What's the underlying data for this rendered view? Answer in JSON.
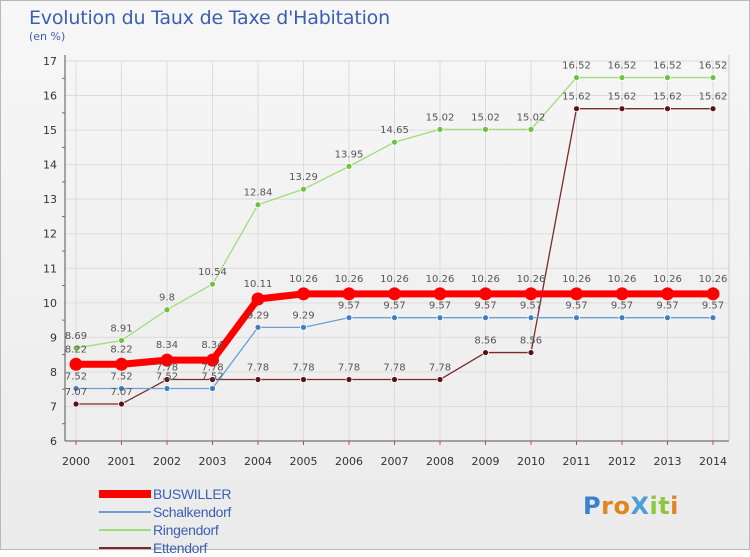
{
  "title": "Evolution du Taux de Taxe d'Habitation",
  "unit_label": "(en %)",
  "brand": {
    "letters": [
      "P",
      "r",
      "o",
      "X",
      "i",
      "t",
      "i"
    ],
    "colors": [
      "#3b7fd1",
      "#e2851f",
      "#e2851f",
      "#4a9ed9",
      "#8dc63f",
      "#8dc63f",
      "#e2851f"
    ]
  },
  "chart_data": {
    "type": "line",
    "title": "Evolution du Taux de Taxe d'Habitation",
    "ylabel": "(en %)",
    "xlabel": "",
    "x": [
      "2000",
      "2001",
      "2002",
      "2003",
      "2004",
      "2005",
      "2006",
      "2007",
      "2008",
      "2009",
      "2010",
      "2011",
      "2012",
      "2013",
      "2014"
    ],
    "ylim": [
      6,
      17
    ],
    "yticks": [
      "6",
      "7",
      "8",
      "9",
      "10",
      "11",
      "12",
      "13",
      "14",
      "15",
      "16",
      "17"
    ],
    "grid": true,
    "legend_position": "bottom-left",
    "series": [
      {
        "name": "Ettendorf",
        "color": "#7a2a2a",
        "marker": "#5a1212",
        "width": 1.3,
        "values": [
          7.07,
          7.07,
          7.78,
          7.78,
          7.78,
          7.78,
          7.78,
          7.78,
          7.78,
          8.56,
          8.56,
          15.62,
          15.62,
          15.62,
          15.62
        ],
        "labels": [
          "7.07",
          "7.07",
          "7.78",
          "7.78",
          "7.78",
          "7.78",
          "7.78",
          "7.78",
          "7.78",
          "8.56",
          "8.56",
          "15.62",
          "15.62",
          "15.62",
          "15.62"
        ]
      },
      {
        "name": "Ringendorf",
        "color": "#9fdc7c",
        "marker": "#6cc33f",
        "width": 1.3,
        "values": [
          8.69,
          8.91,
          9.8,
          10.54,
          12.84,
          13.29,
          13.95,
          14.65,
          15.02,
          15.02,
          15.02,
          16.52,
          16.52,
          16.52,
          16.52
        ],
        "labels": [
          "8.69",
          "8.91",
          "9.8",
          "10.54",
          "12.84",
          "13.29",
          "13.95",
          "14.65",
          "15.02",
          "15.02",
          "15.02",
          "16.52",
          "16.52",
          "16.52",
          "16.52"
        ]
      },
      {
        "name": "Schalkendorf",
        "color": "#6a9fd6",
        "marker": "#3f7fc4",
        "width": 1.3,
        "values": [
          7.52,
          7.52,
          7.52,
          7.52,
          9.29,
          9.29,
          9.57,
          9.57,
          9.57,
          9.57,
          9.57,
          9.57,
          9.57,
          9.57,
          9.57
        ],
        "labels": [
          "7.52",
          "7.52",
          "7.52",
          "7.52",
          "9.29",
          "9.29",
          "9.57",
          "9.57",
          "9.57",
          "9.57",
          "9.57",
          "9.57",
          "9.57",
          "9.57",
          "9.57"
        ]
      },
      {
        "name": "BUSWILLER",
        "color": "#ff0000",
        "marker": "#ff0000",
        "width": 7,
        "values": [
          8.22,
          8.22,
          8.34,
          8.34,
          10.11,
          10.26,
          10.26,
          10.26,
          10.26,
          10.26,
          10.26,
          10.26,
          10.26,
          10.26,
          10.26
        ],
        "labels": [
          "8.22",
          "8.22",
          "8.34",
          "8.34",
          "10.11",
          "10.26",
          "10.26",
          "10.26",
          "10.26",
          "10.26",
          "10.26",
          "10.26",
          "10.26",
          "10.26",
          "10.26"
        ]
      }
    ],
    "legend": [
      "BUSWILLER",
      "Schalkendorf",
      "Ringendorf",
      "Ettendorf"
    ]
  }
}
